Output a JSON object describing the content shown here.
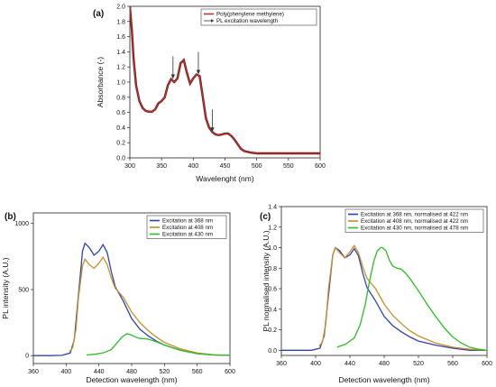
{
  "chart_data": [
    {
      "panel": "(a)",
      "type": "line",
      "xlabel": "Wavelenght (nm)",
      "ylabel": "Absorbance (-)",
      "xlim": [
        300,
        600
      ],
      "ylim": [
        0,
        2.0
      ],
      "xticks": [
        300,
        350,
        400,
        450,
        500,
        550,
        600
      ],
      "yticks": [
        0.0,
        0.2,
        0.4,
        0.6,
        0.8,
        1.0,
        1.2,
        1.4,
        1.6,
        1.8,
        2.0
      ],
      "legend_position": "top-right",
      "series": [
        {
          "name": "Poly(phenylene methylene)",
          "color": "#c0302f",
          "x": [
            300,
            303,
            306,
            310,
            315,
            320,
            325,
            330,
            335,
            340,
            345,
            350,
            355,
            360,
            365,
            370,
            375,
            380,
            385,
            390,
            395,
            400,
            405,
            410,
            415,
            420,
            425,
            430,
            435,
            440,
            445,
            450,
            455,
            460,
            465,
            470,
            475,
            480,
            490,
            500,
            520,
            550,
            580,
            600
          ],
          "y": [
            2.0,
            1.7,
            1.3,
            0.95,
            0.75,
            0.66,
            0.62,
            0.61,
            0.61,
            0.64,
            0.72,
            0.75,
            0.8,
            0.96,
            1.04,
            1.0,
            1.05,
            1.25,
            1.29,
            1.12,
            0.98,
            1.05,
            1.1,
            1.08,
            0.8,
            0.52,
            0.4,
            0.34,
            0.31,
            0.3,
            0.31,
            0.32,
            0.32,
            0.29,
            0.24,
            0.18,
            0.12,
            0.09,
            0.07,
            0.06,
            0.06,
            0.06,
            0.06,
            0.06
          ]
        },
        {
          "name": "PL excitation wavelength",
          "color": "#333333",
          "x": [
            368,
            408,
            430
          ],
          "y": [
            1.03,
            1.09,
            0.33
          ]
        }
      ]
    },
    {
      "panel": "(b)",
      "type": "line",
      "xlabel": "Detection wavelength (nm)",
      "ylabel": "PL intensity (A.U.)",
      "xlim": [
        360,
        600
      ],
      "ylim": [
        -60,
        1080
      ],
      "xticks": [
        360,
        400,
        440,
        480,
        520,
        560,
        600
      ],
      "yticks": [
        0,
        500,
        1000
      ],
      "legend_position": "top-right",
      "series": [
        {
          "name": "Excitation at 368 nm",
          "color": "#2e3fbf",
          "x": [
            360,
            380,
            395,
            405,
            410,
            415,
            420,
            423,
            428,
            434,
            440,
            445,
            450,
            455,
            460,
            470,
            480,
            490,
            500,
            510,
            520,
            540,
            560,
            580,
            600
          ],
          "y": [
            0,
            0,
            2,
            20,
            120,
            460,
            790,
            850,
            820,
            760,
            790,
            840,
            780,
            640,
            520,
            410,
            280,
            200,
            150,
            110,
            80,
            40,
            15,
            5,
            2
          ]
        },
        {
          "name": "Excitation at 408 nm",
          "color": "#c98e22",
          "x": [
            404,
            408,
            412,
            415,
            420,
            423,
            428,
            434,
            440,
            445,
            450,
            455,
            460,
            470,
            480,
            490,
            500,
            510,
            520,
            540,
            560,
            580,
            600
          ],
          "y": [
            30,
            60,
            200,
            440,
            680,
            730,
            690,
            660,
            700,
            745,
            690,
            590,
            510,
            440,
            330,
            250,
            190,
            140,
            100,
            50,
            20,
            6,
            2
          ]
        },
        {
          "name": "Excitation at 430 nm",
          "color": "#28c020",
          "x": [
            425,
            435,
            445,
            455,
            462,
            468,
            474,
            478,
            485,
            490,
            495,
            500,
            510,
            520,
            540,
            560,
            580,
            600
          ],
          "y": [
            5,
            10,
            20,
            45,
            95,
            140,
            165,
            160,
            140,
            130,
            128,
            125,
            105,
            80,
            40,
            15,
            5,
            2
          ]
        }
      ]
    },
    {
      "panel": "(c)",
      "type": "line",
      "xlabel": "Detection wavelength (nm)",
      "ylabel": "PL normalised intensity (A.U.)",
      "xlim": [
        360,
        600
      ],
      "ylim": [
        -0.05,
        1.4
      ],
      "xticks": [
        360,
        400,
        440,
        480,
        520,
        560,
        600
      ],
      "yticks": [
        0.0,
        0.2,
        0.4,
        0.6,
        0.8,
        1.0,
        1.2,
        1.4
      ],
      "legend_position": "top-right",
      "series": [
        {
          "name": "Excitation at 368 nm, normalised at 422 nm",
          "color": "#2e3fbf",
          "x": [
            360,
            380,
            395,
            405,
            410,
            415,
            420,
            423,
            428,
            434,
            440,
            445,
            450,
            455,
            460,
            470,
            480,
            490,
            500,
            510,
            520,
            540,
            560,
            580,
            600
          ],
          "y": [
            0,
            0,
            0.0,
            0.02,
            0.14,
            0.54,
            0.93,
            1.0,
            0.97,
            0.9,
            0.93,
            0.99,
            0.92,
            0.75,
            0.61,
            0.48,
            0.33,
            0.24,
            0.18,
            0.13,
            0.09,
            0.05,
            0.02,
            0.0,
            0.0
          ]
        },
        {
          "name": "Excitation at 408 nm, normalised at 422 nm",
          "color": "#c98e22",
          "x": [
            404,
            408,
            412,
            415,
            420,
            423,
            428,
            434,
            440,
            445,
            450,
            455,
            460,
            470,
            480,
            490,
            500,
            510,
            520,
            540,
            560,
            580,
            600
          ],
          "y": [
            0.04,
            0.08,
            0.27,
            0.6,
            0.93,
            1.0,
            0.95,
            0.9,
            0.96,
            1.02,
            0.95,
            0.81,
            0.7,
            0.6,
            0.45,
            0.34,
            0.26,
            0.19,
            0.14,
            0.07,
            0.03,
            0.01,
            0.0
          ]
        },
        {
          "name": "Excitation at 430 nm, normalised at 478 nm",
          "color": "#28c020",
          "x": [
            425,
            435,
            445,
            452,
            458,
            463,
            468,
            472,
            476,
            478,
            482,
            486,
            490,
            495,
            500,
            505,
            510,
            520,
            530,
            540,
            550,
            560,
            570,
            580,
            590,
            600
          ],
          "y": [
            0.03,
            0.06,
            0.12,
            0.25,
            0.45,
            0.68,
            0.87,
            0.97,
            1.0,
            1.0,
            0.97,
            0.88,
            0.82,
            0.8,
            0.79,
            0.75,
            0.7,
            0.58,
            0.45,
            0.33,
            0.22,
            0.13,
            0.07,
            0.03,
            0.01,
            0.0
          ]
        }
      ]
    }
  ]
}
